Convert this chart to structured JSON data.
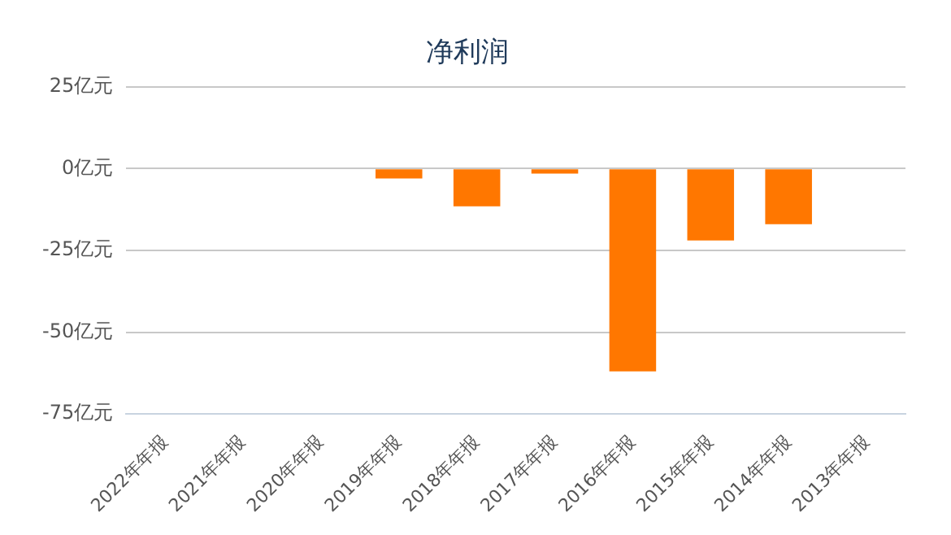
{
  "chart_data": {
    "type": "bar",
    "title": "净利润",
    "categories": [
      "2022年年报",
      "2021年年报",
      "2020年年报",
      "2019年年报",
      "2018年年报",
      "2017年年报",
      "2016年年报",
      "2015年年报",
      "2014年年报",
      "2013年年报"
    ],
    "series": [
      {
        "color": "#ff7700",
        "values": [
          null,
          null,
          null,
          -3,
          -11.5,
          -1.5,
          -62,
          -22,
          -17,
          null
        ]
      }
    ],
    "ylim": [
      -75,
      25
    ],
    "yticks": [
      {
        "value": -75,
        "label": "-75亿元"
      },
      {
        "value": -50,
        "label": "-50亿元"
      },
      {
        "value": -25,
        "label": "-25亿元"
      },
      {
        "value": 0,
        "label": "0亿元"
      },
      {
        "value": 25,
        "label": "25亿元"
      }
    ],
    "grid": "y",
    "legend": false
  }
}
